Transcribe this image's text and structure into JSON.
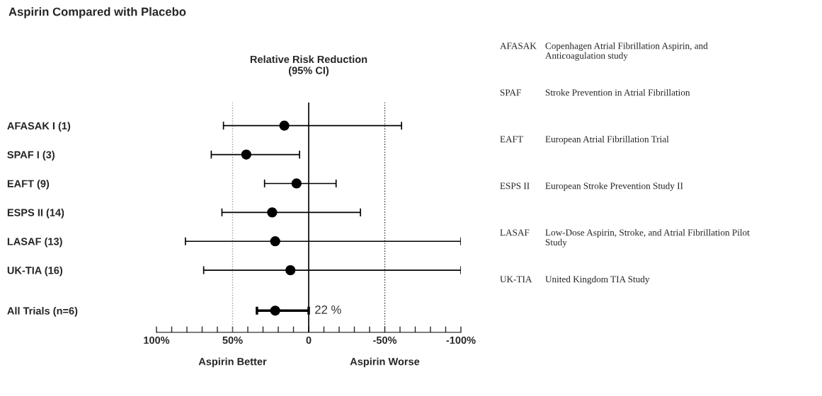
{
  "chart_data": {
    "type": "scatter",
    "orientation": "horizontal",
    "title": "Aspirin Compared with Placebo",
    "subtitle": "Relative Risk Reduction\n(95% CI)",
    "categories": [
      "AFASAK I (1)",
      "SPAF I (3)",
      "EAFT (9)",
      "ESPS II (14)",
      "LASAF (13)",
      "UK-TIA (16)",
      "All Trials (n=6)"
    ],
    "values": [
      16,
      41,
      8,
      24,
      22,
      12,
      22
    ],
    "errors": [
      [
        -61,
        56
      ],
      [
        6,
        64
      ],
      [
        -18,
        29
      ],
      [
        -34,
        57
      ],
      [
        -100,
        81
      ],
      [
        -100,
        69
      ],
      [
        0,
        34
      ]
    ],
    "value_labels": [
      null,
      null,
      null,
      null,
      null,
      null,
      "22 %"
    ],
    "color": "#000000",
    "marker": "circle",
    "xlim": [
      100,
      -100
    ],
    "xticks": [
      {
        "value": 100,
        "label": "100%"
      },
      {
        "value": 90,
        "label": null
      },
      {
        "value": 80,
        "label": null
      },
      {
        "value": 70,
        "label": null
      },
      {
        "value": 60,
        "label": null
      },
      {
        "value": 50,
        "label": "50%"
      },
      {
        "value": 40,
        "label": null
      },
      {
        "value": 30,
        "label": null
      },
      {
        "value": 20,
        "label": null
      },
      {
        "value": 10,
        "label": null
      },
      0,
      {
        "value": -10,
        "label": null
      },
      {
        "value": -20,
        "label": null
      },
      {
        "value": -30,
        "label": null
      },
      {
        "value": -40,
        "label": null
      },
      {
        "value": -50,
        "label": "-50%"
      },
      {
        "value": -60,
        "label": null
      },
      {
        "value": -70,
        "label": null
      },
      {
        "value": -80,
        "label": null
      },
      {
        "value": -90,
        "label": null
      },
      {
        "value": -100,
        "label": "-100%"
      }
    ],
    "ref_lines": [
      {
        "axis": "x",
        "value": 50,
        "line_style": "dotted",
        "color": "#999999"
      },
      {
        "axis": "x",
        "value": 0,
        "line_style": "solid",
        "color": "#000000"
      },
      {
        "axis": "x",
        "value": -50,
        "line_style": "dotted",
        "color": "#333333"
      }
    ],
    "annotations": [
      "Aspirin Better",
      "Aspirin Worse",
      "AFASAK\tCopenhagen Atrial Fibrillation Aspirin, and Anticoagulation study",
      "SPAF\tStroke Prevention in Atrial Fibrillation",
      "EAFT\tEuropean Atrial Fibrillation Trial",
      "ESPS II\tEuropean Stroke Prevention Study II",
      "LASAF\tLow-Dose Aspirin, Stroke, and Atrial Fibrillation Pilot Study",
      "UK-TIA\tUnited Kingdom TIA Study"
    ]
  }
}
